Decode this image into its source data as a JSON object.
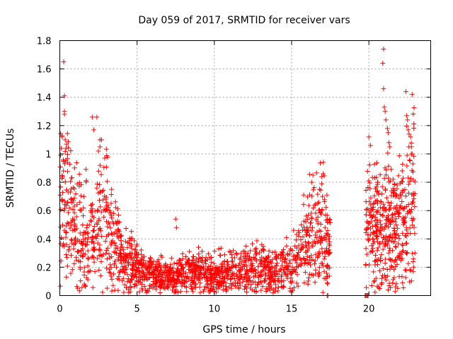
{
  "chart_data": {
    "type": "scatter",
    "title": "Day 059 of 2017, SRMTID for receiver vars",
    "xlabel": "GPS time / hours",
    "ylabel": "SRMTID / TECUs",
    "xlim": [
      0,
      24
    ],
    "ylim": [
      0,
      1.8
    ],
    "xticks": [
      0,
      5,
      10,
      15,
      20
    ],
    "xtick_labels": [
      "0",
      "5",
      "10",
      "15",
      "20"
    ],
    "yticks": [
      0,
      0.2,
      0.4,
      0.6,
      0.8,
      1,
      1.2,
      1.4,
      1.6,
      1.8
    ],
    "ytick_labels": [
      "0",
      "0.2",
      "0.4",
      "0.6",
      "0.8",
      "1",
      "1.2",
      "1.4",
      "1.6",
      "1.8"
    ],
    "grid": true,
    "marker": "plus",
    "color": "#ff0000",
    "series": [
      {
        "name": "SRMTID",
        "profile": [
          [
            0.0,
            0.65
          ],
          [
            0.5,
            0.62
          ],
          [
            1.0,
            0.52
          ],
          [
            1.5,
            0.45
          ],
          [
            2.0,
            0.42
          ],
          [
            2.5,
            0.5
          ],
          [
            3.0,
            0.48
          ],
          [
            3.5,
            0.38
          ],
          [
            4.0,
            0.27
          ],
          [
            4.5,
            0.22
          ],
          [
            5.0,
            0.2
          ],
          [
            5.5,
            0.16
          ],
          [
            6.0,
            0.14
          ],
          [
            7.0,
            0.13
          ],
          [
            8.0,
            0.15
          ],
          [
            9.0,
            0.17
          ],
          [
            10.0,
            0.15
          ],
          [
            11.0,
            0.17
          ],
          [
            12.0,
            0.18
          ],
          [
            13.0,
            0.19
          ],
          [
            14.0,
            0.18
          ],
          [
            15.0,
            0.2
          ],
          [
            15.5,
            0.28
          ],
          [
            16.0,
            0.38
          ],
          [
            16.5,
            0.44
          ],
          [
            17.0,
            0.46
          ],
          [
            17.5,
            0.35
          ]
        ],
        "profile_late": [
          [
            19.8,
            0.5
          ],
          [
            20.5,
            0.48
          ],
          [
            21.0,
            0.52
          ],
          [
            21.5,
            0.48
          ],
          [
            22.0,
            0.5
          ],
          [
            22.5,
            0.6
          ],
          [
            23.0,
            0.65
          ]
        ],
        "outliers": [
          [
            0.25,
            1.65
          ],
          [
            0.3,
            1.41
          ],
          [
            0.3,
            1.3
          ],
          [
            0.3,
            1.28
          ],
          [
            0.15,
            1.12
          ],
          [
            0.35,
            1.1
          ],
          [
            0.1,
            1.04
          ],
          [
            0.4,
            1.04
          ],
          [
            0.5,
            0.94
          ],
          [
            2.1,
            1.26
          ],
          [
            2.4,
            1.26
          ],
          [
            2.2,
            1.17
          ],
          [
            2.6,
            1.1
          ],
          [
            2.7,
            1.1
          ],
          [
            2.5,
            1.02
          ],
          [
            2.6,
            1.05
          ],
          [
            7.5,
            0.54
          ],
          [
            7.55,
            0.48
          ],
          [
            16.3,
            0.8
          ],
          [
            17.0,
            0.7
          ],
          [
            17.3,
            0.0
          ],
          [
            17.35,
            0.0
          ],
          [
            19.75,
            0.0
          ],
          [
            19.8,
            0.0
          ],
          [
            19.85,
            0.0
          ],
          [
            19.9,
            0.0
          ],
          [
            19.95,
            0.0
          ],
          [
            20.95,
            1.74
          ],
          [
            20.9,
            1.64
          ],
          [
            20.95,
            1.46
          ],
          [
            21.0,
            1.33
          ],
          [
            21.05,
            1.3
          ],
          [
            21.1,
            1.24
          ],
          [
            21.2,
            1.18
          ],
          [
            21.25,
            1.15
          ],
          [
            21.3,
            1.08
          ],
          [
            21.35,
            1.05
          ],
          [
            22.4,
            1.44
          ],
          [
            22.8,
            1.42
          ],
          [
            22.6,
            1.14
          ],
          [
            22.7,
            1.12
          ],
          [
            22.75,
            1.05
          ],
          [
            22.8,
            1.0
          ],
          [
            22.85,
            0.93
          ],
          [
            22.45,
            1.27
          ],
          [
            22.5,
            1.24
          ],
          [
            22.55,
            1.17
          ],
          [
            20.7,
            0.05
          ],
          [
            20.8,
            0.08
          ],
          [
            20.85,
            0.09
          ],
          [
            19.8,
            0.22
          ],
          [
            20.0,
            1.12
          ],
          [
            20.1,
            1.06
          ],
          [
            21.5,
            0.2
          ],
          [
            22.0,
            0.3
          ]
        ]
      }
    ]
  }
}
